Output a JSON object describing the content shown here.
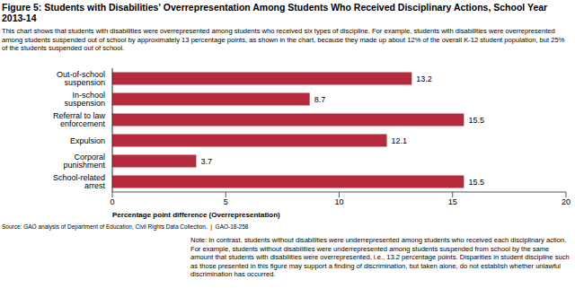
{
  "chart_data": {
    "type": "bar",
    "title": "Figure 5: Students with Disabilities' Overrepresentation Among Students Who Received Disciplinary Actions, School Year 2013-14",
    "subtitle": "This chart shows that students with disabilities were overrepresented among students who received six types of discipline. For example, students with disabilities were overrepresented among students suspended out of school by approximately 13 percentage points, as shown in the chart, because they made up about 12% of the overall K-12 student population, but 25% of the students suspended out of school.",
    "categories": [
      "Out-of-school suspension",
      "In-school suspension",
      "Referral to law enforcement",
      "Expulsion",
      "Corporal punishment",
      "School-related arrest"
    ],
    "values": [
      13.2,
      8.7,
      15.5,
      12.1,
      3.7,
      15.5
    ],
    "color": "#b52a3d",
    "orientation": "horizontal",
    "data_labels": true,
    "grid": false,
    "xlim": [
      0,
      20
    ],
    "xticks": [
      0,
      5,
      10,
      15,
      20
    ],
    "xlabel": "Percentage point difference (Overrepresentation)",
    "source": "Source: GAO analysis of Department of Education, Civil Rights Data Collection.  |  GAO-18-258",
    "note": "Note: In contrast, students without disabilities were underrepresented among students who received each disciplinary action. For example, students without disabilities were underrepresented among students suspended from school by the same amount that students with disabilities were overrepresented, i.e., 13.2 percentage points. Disparities in student discipline such as those presented in this figure may support a finding of discrimination, but taken alone, do not establish whether unlawful discrimination has occurred."
  }
}
